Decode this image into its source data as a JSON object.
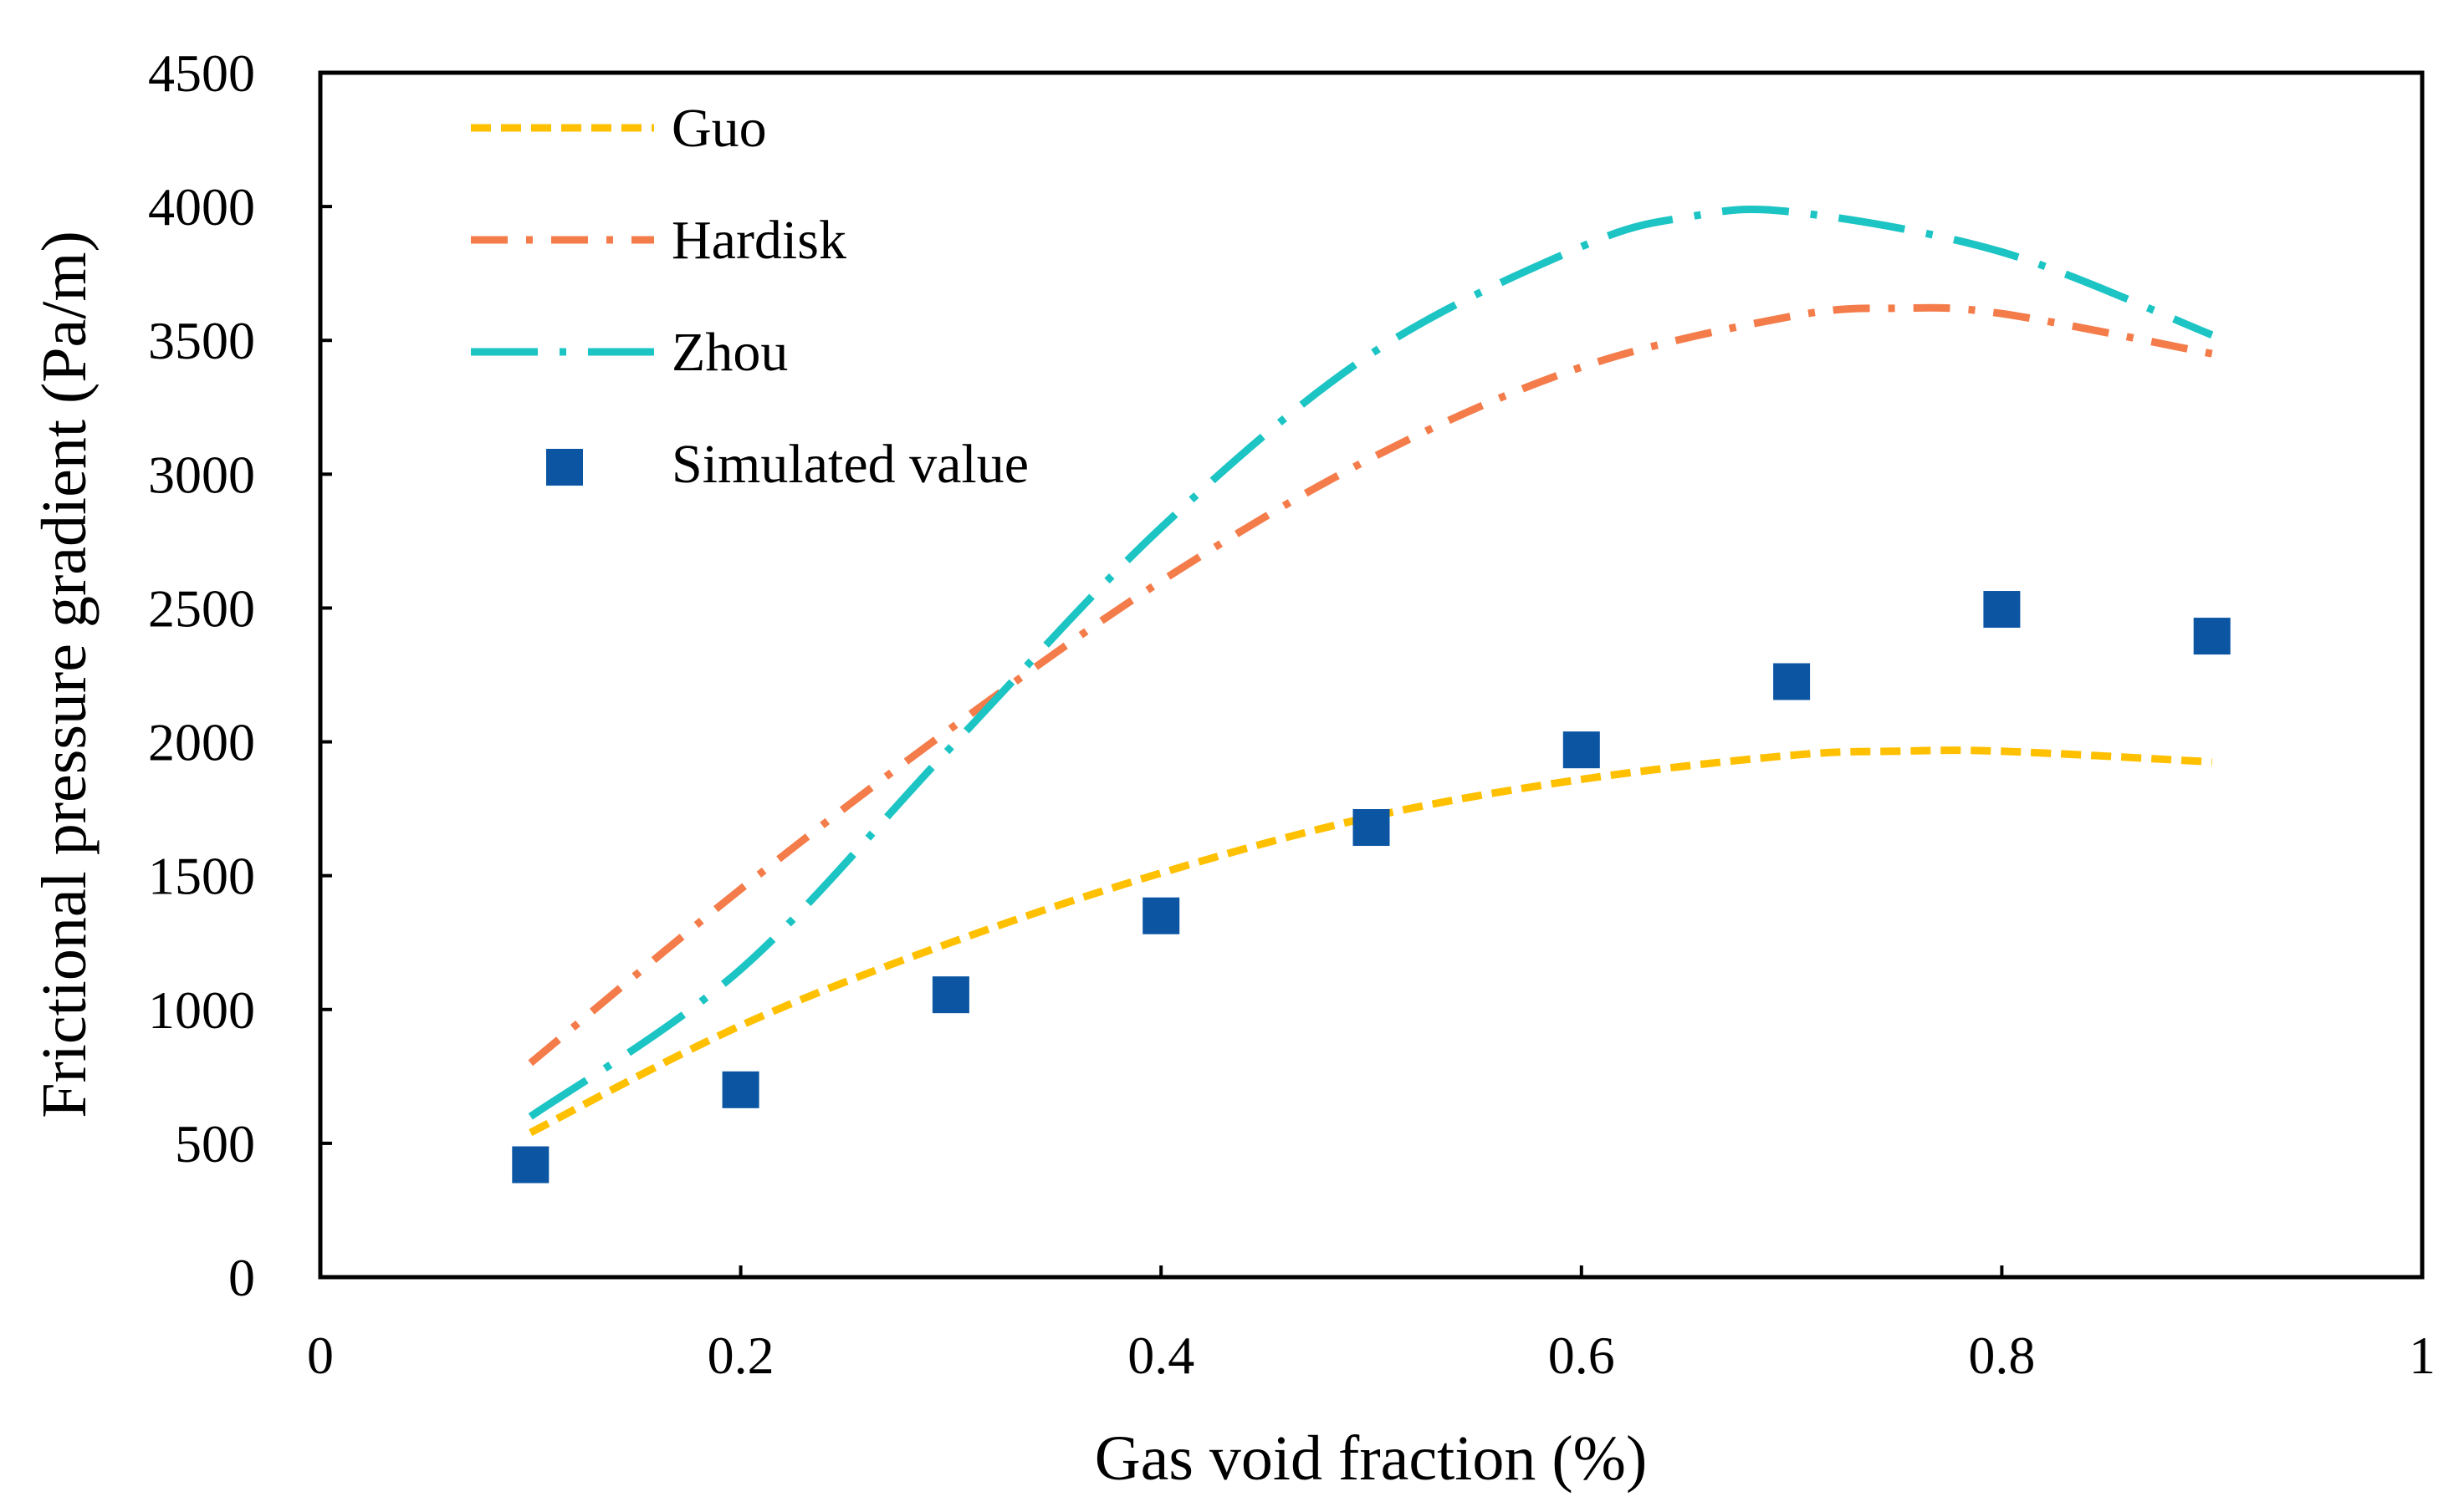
{
  "chart_data": {
    "type": "line",
    "title": "",
    "xlabel": "Gas void fraction (%)",
    "ylabel": "Frictional pressure gradient (Pa/m)",
    "xlim": [
      0,
      1
    ],
    "ylim": [
      0,
      4500
    ],
    "xticks": [
      0,
      0.2,
      0.4,
      0.6,
      0.8,
      1
    ],
    "xtick_labels": [
      "0",
      "0.2",
      "0.4",
      "0.6",
      "0.8",
      "1"
    ],
    "yticks": [
      0,
      500,
      1000,
      1500,
      2000,
      2500,
      3000,
      3500,
      4000,
      4500
    ],
    "ytick_labels": [
      "0",
      "500",
      "1000",
      "1500",
      "2000",
      "2500",
      "3000",
      "3500",
      "4000",
      "4500"
    ],
    "grid": false,
    "legend_position": "top-left",
    "series": [
      {
        "name": "Guo",
        "style": "dashed",
        "color": "#FFC000",
        "x": [
          0.1,
          0.2,
          0.3,
          0.4,
          0.5,
          0.6,
          0.7,
          0.75,
          0.8,
          0.9
        ],
        "y": [
          540,
          940,
          1250,
          1510,
          1720,
          1860,
          1950,
          1965,
          1965,
          1925
        ]
      },
      {
        "name": "Hardisk",
        "style": "dash-dot",
        "color": "#F47C4A",
        "x": [
          0.1,
          0.2,
          0.3,
          0.4,
          0.5,
          0.6,
          0.7,
          0.75,
          0.8,
          0.9
        ],
        "y": [
          800,
          1450,
          2050,
          2600,
          3060,
          3400,
          3590,
          3620,
          3600,
          3450
        ]
      },
      {
        "name": "Zhou",
        "style": "long-dash-dot",
        "color": "#1CC4C4",
        "x": [
          0.1,
          0.2,
          0.3,
          0.4,
          0.5,
          0.6,
          0.65,
          0.7,
          0.8,
          0.9
        ],
        "y": [
          600,
          1150,
          1980,
          2800,
          3450,
          3850,
          3960,
          3980,
          3830,
          3520
        ]
      },
      {
        "name": "Simulated value",
        "style": "markers",
        "marker": "square",
        "color": "#0B55A3",
        "x": [
          0.1,
          0.2,
          0.3,
          0.4,
          0.5,
          0.6,
          0.7,
          0.8,
          0.9
        ],
        "y": [
          420,
          700,
          1055,
          1350,
          1680,
          1970,
          2225,
          2495,
          2395
        ]
      }
    ]
  }
}
